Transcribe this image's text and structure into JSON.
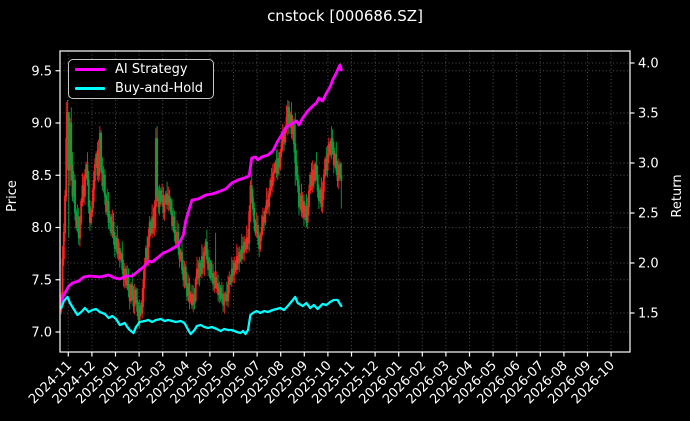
{
  "title": "cnstock [000686.SZ]",
  "legend": {
    "items": [
      {
        "label": "AI Strategy",
        "color": "#ff00ff"
      },
      {
        "label": "Buy-and-Hold",
        "color": "#00ffff"
      }
    ]
  },
  "colors": {
    "background": "#000000",
    "text": "#ffffff",
    "spine": "#ffffff",
    "grid": "rgba(255,255,255,0.30)",
    "candle_up": "#ff2121",
    "candle_down": "#00a43c",
    "ai_strategy": "#ff00ff",
    "buy_and_hold": "#00ffff",
    "legend_border": "#c8c8c8"
  },
  "chart_data": {
    "type": "candlestick+line",
    "title": "cnstock [000686.SZ]",
    "xlabel": "",
    "left_axis": {
      "label": "Price",
      "ticks": [
        7.0,
        7.5,
        8.0,
        8.5,
        9.0,
        9.5
      ],
      "range": [
        6.81,
        9.69
      ]
    },
    "right_axis": {
      "label": "Return",
      "ticks": [
        1.5,
        2.0,
        2.5,
        3.0,
        3.5,
        4.0
      ],
      "range": [
        1.11,
        4.12
      ]
    },
    "grid": "dotted, both axes",
    "legend_position": "upper left",
    "x_tick_labels": [
      "2024-11",
      "2024-12",
      "2025-01",
      "2025-02",
      "2025-03",
      "2025-04",
      "2025-05",
      "2025-06",
      "2025-07",
      "2025-08",
      "2025-09",
      "2025-10",
      "2025-11",
      "2025-12",
      "2026-01",
      "2026-02",
      "2026-03",
      "2026-04",
      "2026-05",
      "2026-06",
      "2026-07",
      "2026-08",
      "2026-09",
      "2026-10"
    ],
    "data_span_note": "daily candles from 2024-11 to mid 2025-10; axis extends empty to 2026-10",
    "candles": {
      "first_open": 7.2,
      "closes": [
        7.35,
        7.7,
        7.95,
        8.3,
        8.85,
        9.1,
        8.55,
        9.0,
        8.6,
        8.3,
        8.45,
        8.15,
        8.0,
        8.1,
        7.9,
        8.05,
        8.25,
        8.4,
        8.3,
        8.5,
        8.6,
        8.45,
        8.2,
        8.05,
        8.15,
        8.25,
        8.45,
        8.6,
        8.7,
        8.5,
        8.75,
        8.9,
        8.55,
        8.4,
        8.5,
        8.3,
        8.15,
        8.25,
        8.05,
        8.1,
        7.95,
        8.05,
        7.9,
        7.8,
        7.9,
        7.75,
        7.8,
        7.7,
        7.75,
        7.6,
        7.5,
        7.6,
        7.45,
        7.52,
        7.4,
        7.3,
        7.45,
        7.35,
        7.25,
        7.4,
        7.3,
        7.2,
        7.12,
        7.25,
        7.18,
        7.3,
        7.5,
        7.65,
        7.8,
        7.7,
        7.9,
        8.05,
        7.95,
        8.1,
        8.0,
        8.2,
        8.85,
        8.3,
        8.2,
        8.35,
        8.25,
        8.3,
        8.15,
        8.25,
        8.32,
        8.22,
        8.3,
        8.25,
        8.15,
        8.02,
        8.1,
        7.95,
        7.85,
        7.95,
        7.8,
        7.7,
        7.76,
        7.6,
        7.5,
        7.62,
        7.45,
        7.35,
        7.46,
        7.3,
        7.36,
        7.26,
        7.36,
        7.3,
        7.5,
        7.6,
        7.52,
        7.66,
        7.56,
        7.72,
        7.62,
        7.76,
        7.86,
        7.7,
        7.6,
        7.66,
        7.52,
        7.56,
        7.46,
        7.52,
        7.42,
        7.46,
        7.36,
        7.42,
        7.32,
        7.36,
        7.26,
        7.32,
        7.36,
        7.3,
        7.45,
        7.52,
        7.48,
        7.6,
        7.55,
        7.66,
        7.6,
        7.72,
        7.66,
        7.76,
        7.7,
        7.82,
        7.76,
        7.86,
        7.8,
        7.9,
        7.85,
        8.15,
        8.4,
        8.28,
        8.18,
        8.05,
        7.95,
        8.02,
        7.9,
        7.8,
        7.92,
        8.0,
        8.1,
        8.05,
        8.18,
        8.26,
        8.2,
        8.32,
        8.45,
        8.4,
        8.52,
        8.55,
        8.62,
        8.52,
        8.66,
        8.58,
        8.72,
        8.8,
        8.9,
        8.82,
        8.95,
        9.05,
        9.15,
        8.98,
        9.08,
        8.9,
        8.98,
        8.8,
        8.62,
        8.5,
        8.4,
        8.2,
        8.3,
        8.15,
        8.25,
        8.1,
        8.2,
        8.05,
        8.2,
        8.35,
        8.5,
        8.4,
        8.55,
        8.45,
        8.6,
        8.5,
        8.35,
        8.26,
        8.36,
        8.2,
        8.35,
        8.5,
        8.65,
        8.55,
        8.7,
        8.8,
        8.7,
        8.85,
        8.76,
        8.6,
        8.7,
        8.55,
        8.45,
        8.6,
        8.5,
        8.45
      ],
      "wick_overrides": {
        "4": [
          9.2,
          8.25
        ],
        "5": [
          9.22,
          8.55
        ],
        "6": [
          9.1,
          7.9
        ],
        "7": [
          9.05,
          8.4
        ],
        "8": [
          9.15,
          8.45
        ],
        "31": [
          8.97,
          8.45
        ],
        "76": [
          8.95,
          7.95
        ],
        "105": [
          7.45,
          7.22
        ],
        "124": [
          7.95,
          7.42
        ],
        "152": [
          8.45,
          8.05
        ],
        "182": [
          9.22,
          8.88
        ],
        "188": [
          9.1,
          8.4
        ],
        "225": [
          8.62,
          8.18
        ]
      }
    },
    "ai_strategy": {
      "axis": "right",
      "points": [
        [
          0,
          1.62
        ],
        [
          2,
          1.68
        ],
        [
          6,
          1.77
        ],
        [
          9,
          1.8
        ],
        [
          14,
          1.82
        ],
        [
          18,
          1.86
        ],
        [
          23,
          1.87
        ],
        [
          31,
          1.86
        ],
        [
          38,
          1.88
        ],
        [
          43,
          1.85
        ],
        [
          47,
          1.84
        ],
        [
          52,
          1.87
        ],
        [
          57,
          1.87
        ],
        [
          62,
          1.92
        ],
        [
          67,
          1.97
        ],
        [
          70,
          2.02
        ],
        [
          73,
          2.01
        ],
        [
          78,
          2.06
        ],
        [
          82,
          2.1
        ],
        [
          86,
          2.12
        ],
        [
          90,
          2.15
        ],
        [
          94,
          2.18
        ],
        [
          98,
          2.28
        ],
        [
          100,
          2.42
        ],
        [
          103,
          2.55
        ],
        [
          105,
          2.63
        ],
        [
          110,
          2.64
        ],
        [
          116,
          2.68
        ],
        [
          121,
          2.69
        ],
        [
          126,
          2.71
        ],
        [
          132,
          2.74
        ],
        [
          137,
          2.8
        ],
        [
          142,
          2.83
        ],
        [
          147,
          2.85
        ],
        [
          151,
          2.87
        ],
        [
          153,
          3.05
        ],
        [
          156,
          3.06
        ],
        [
          158,
          3.03
        ],
        [
          161,
          3.06
        ],
        [
          166,
          3.08
        ],
        [
          170,
          3.12
        ],
        [
          174,
          3.22
        ],
        [
          178,
          3.3
        ],
        [
          181,
          3.36
        ],
        [
          186,
          3.4
        ],
        [
          189,
          3.42
        ],
        [
          191,
          3.38
        ],
        [
          194,
          3.45
        ],
        [
          198,
          3.52
        ],
        [
          202,
          3.57
        ],
        [
          205,
          3.6
        ],
        [
          207,
          3.65
        ],
        [
          210,
          3.62
        ],
        [
          213,
          3.7
        ],
        [
          216,
          3.76
        ],
        [
          218,
          3.83
        ],
        [
          221,
          3.9
        ],
        [
          223,
          3.96
        ],
        [
          224,
          3.98
        ],
        [
          225,
          3.93
        ]
      ]
    },
    "buy_and_hold": {
      "axis": "right",
      "points": [
        [
          0,
          1.55
        ],
        [
          2,
          1.62
        ],
        [
          5,
          1.66
        ],
        [
          7,
          1.6
        ],
        [
          10,
          1.54
        ],
        [
          13,
          1.48
        ],
        [
          16,
          1.51
        ],
        [
          19,
          1.55
        ],
        [
          22,
          1.51
        ],
        [
          25,
          1.53
        ],
        [
          28,
          1.54
        ],
        [
          31,
          1.51
        ],
        [
          35,
          1.49
        ],
        [
          38,
          1.45
        ],
        [
          41,
          1.47
        ],
        [
          44,
          1.44
        ],
        [
          47,
          1.38
        ],
        [
          51,
          1.4
        ],
        [
          53,
          1.36
        ],
        [
          55,
          1.33
        ],
        [
          58,
          1.3
        ],
        [
          60,
          1.36
        ],
        [
          63,
          1.41
        ],
        [
          67,
          1.42
        ],
        [
          70,
          1.43
        ],
        [
          73,
          1.41
        ],
        [
          76,
          1.43
        ],
        [
          80,
          1.44
        ],
        [
          83,
          1.42
        ],
        [
          86,
          1.43
        ],
        [
          89,
          1.42
        ],
        [
          92,
          1.41
        ],
        [
          96,
          1.42
        ],
        [
          99,
          1.4
        ],
        [
          102,
          1.33
        ],
        [
          104,
          1.29
        ],
        [
          107,
          1.33
        ],
        [
          109,
          1.37
        ],
        [
          112,
          1.38
        ],
        [
          115,
          1.36
        ],
        [
          118,
          1.35
        ],
        [
          121,
          1.36
        ],
        [
          125,
          1.34
        ],
        [
          128,
          1.32
        ],
        [
          131,
          1.34
        ],
        [
          134,
          1.33
        ],
        [
          137,
          1.33
        ],
        [
          141,
          1.31
        ],
        [
          144,
          1.3
        ],
        [
          146,
          1.32
        ],
        [
          148,
          1.29
        ],
        [
          150,
          1.33
        ],
        [
          152,
          1.48
        ],
        [
          154,
          1.5
        ],
        [
          157,
          1.52
        ],
        [
          160,
          1.5
        ],
        [
          163,
          1.52
        ],
        [
          166,
          1.51
        ],
        [
          170,
          1.53
        ],
        [
          173,
          1.54
        ],
        [
          176,
          1.55
        ],
        [
          179,
          1.53
        ],
        [
          182,
          1.57
        ],
        [
          186,
          1.63
        ],
        [
          188,
          1.66
        ],
        [
          190,
          1.6
        ],
        [
          194,
          1.57
        ],
        [
          197,
          1.6
        ],
        [
          200,
          1.55
        ],
        [
          203,
          1.58
        ],
        [
          206,
          1.54
        ],
        [
          210,
          1.59
        ],
        [
          213,
          1.58
        ],
        [
          216,
          1.61
        ],
        [
          219,
          1.63
        ],
        [
          222,
          1.63
        ],
        [
          224,
          1.59
        ],
        [
          225,
          1.57
        ]
      ]
    }
  }
}
